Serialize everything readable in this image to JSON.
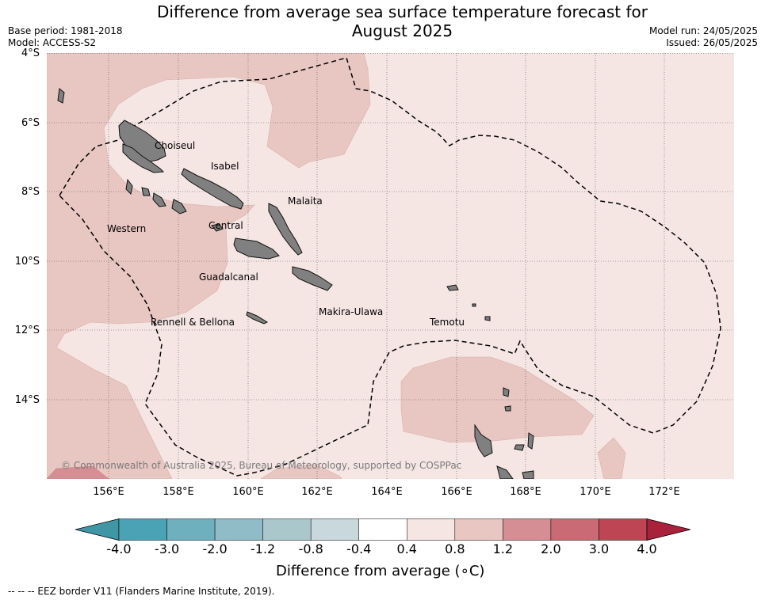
{
  "title_line1": "Difference from average sea surface temperature forecast for",
  "title_line2": "August 2025",
  "base_period": "Base period: 1981-2018",
  "model": "Model: ACCESS-S2",
  "model_run": "Model run: 24/05/2025",
  "issued": "Issued: 26/05/2025",
  "lat_labels": [
    "4°S",
    "6°S",
    "8°S",
    "10°S",
    "12°S",
    "14°S"
  ],
  "lon_labels": [
    "156°E",
    "158°E",
    "160°E",
    "162°E",
    "164°E",
    "166°E",
    "168°E",
    "170°E",
    "172°E"
  ],
  "regions": [
    "Choiseul",
    "Isabel",
    "Malaita",
    "Western",
    "Central",
    "Guadalcanal",
    "Makira-Ulawa",
    "Rennell & Bellona",
    "Temotu"
  ],
  "copyright": "© Commonwealth of Australia 2025, Bureau of Meteorology, supported by COSPPac",
  "colorbar": {
    "ticks": [
      "-4.0",
      "-3.0",
      "-2.0",
      "-1.2",
      "-0.8",
      "-0.4",
      "0.4",
      "0.8",
      "1.2",
      "2.0",
      "3.0",
      "4.0"
    ],
    "colors": [
      "#3f97a6",
      "#4aa3b4",
      "#6fb0bf",
      "#8fbcc6",
      "#aac8cc",
      "#c9d8dc",
      "#ffffff",
      "#f5e6e4",
      "#e8c6c2",
      "#d68e95",
      "#c96a74",
      "#be4654",
      "#a8223c"
    ],
    "label": "Difference from average (",
    "label_unit": "∘C)"
  },
  "footnote": "--  --  -- EEZ border V11 (Flanders Marine Institute, 2019).",
  "colors": {
    "land": "#808080",
    "anomaly_0_4_0_8": "#f5e6e4",
    "anomaly_0_8_1_2": "#e8c6c2",
    "anomaly_1_2_2_0": "#d68e95"
  }
}
